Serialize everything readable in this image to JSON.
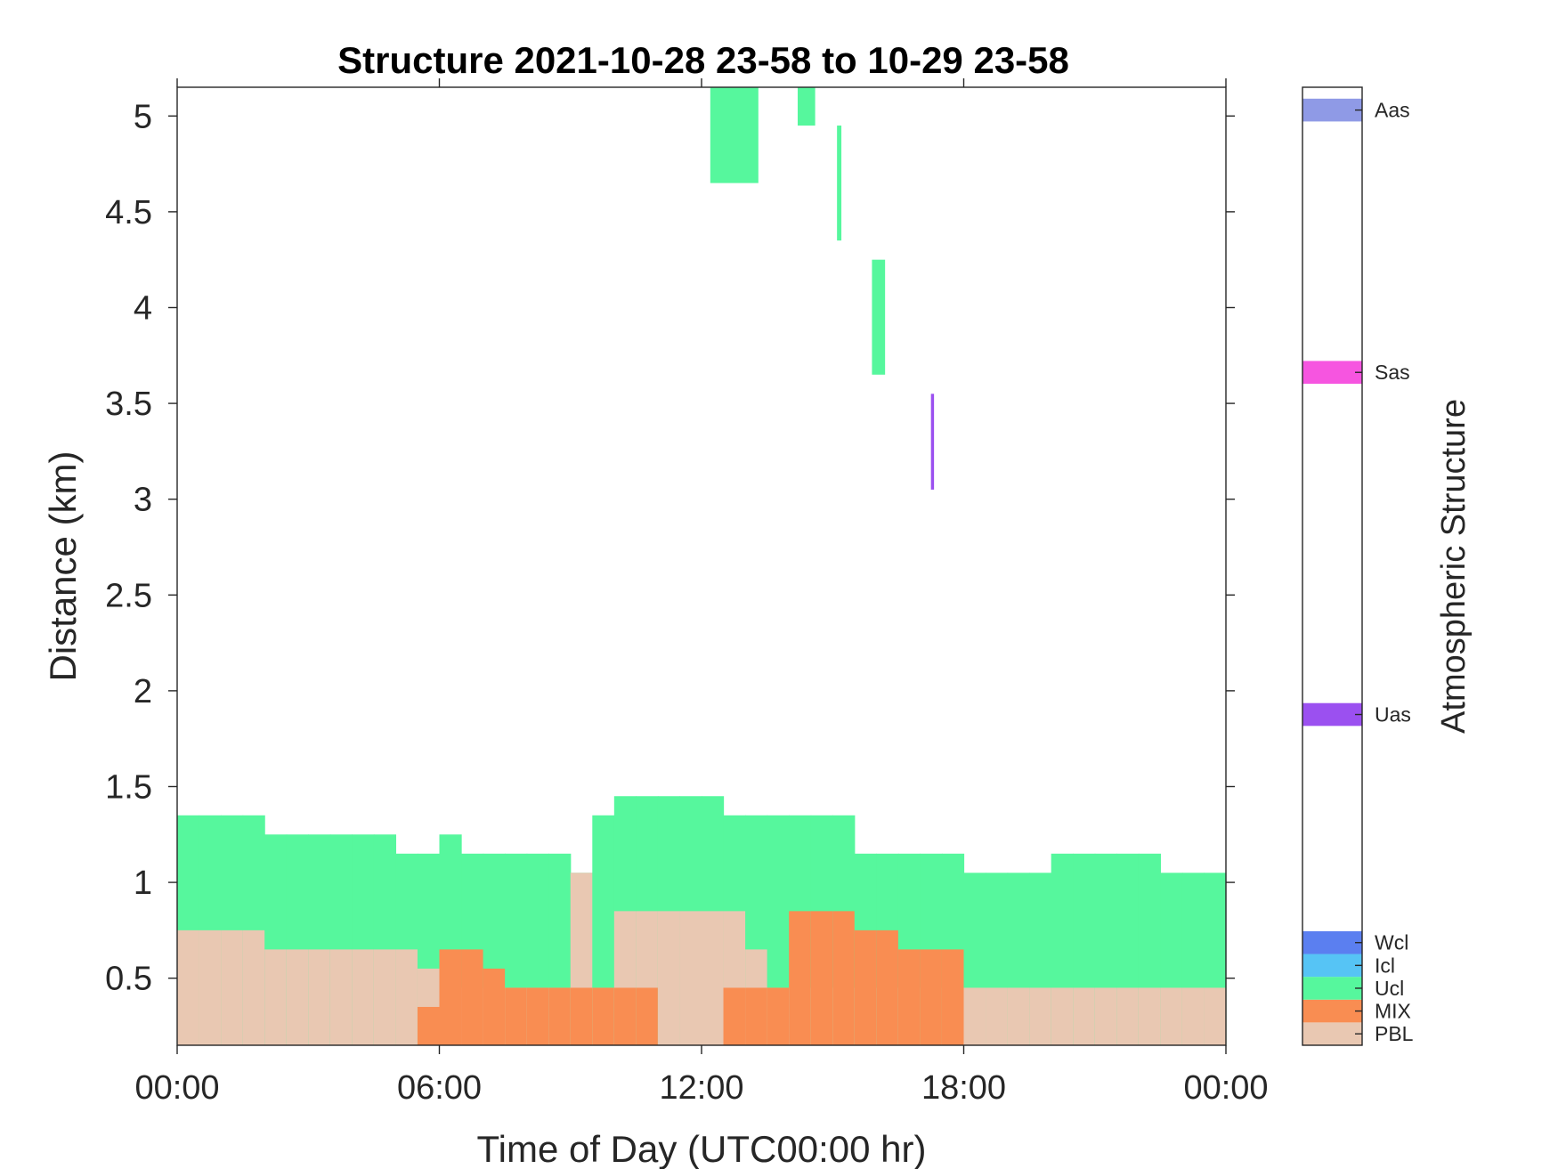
{
  "chart_data": {
    "type": "heatmap",
    "title": "Structure 2021-10-28 23-58 to 10-29 23-58",
    "xlabel": "Time of Day (UTC00:00 hr)",
    "ylabel": "Distance (km)",
    "xlim": [
      0,
      24
    ],
    "ylim": [
      0.15,
      5.15
    ],
    "x_ticks": [
      0,
      6,
      12,
      18,
      24
    ],
    "x_tick_labels": [
      "00:00",
      "06:00",
      "12:00",
      "18:00",
      "00:00"
    ],
    "y_ticks": [
      0.5,
      1,
      1.5,
      2,
      2.5,
      3,
      3.5,
      4,
      4.5,
      5
    ],
    "y_tick_labels": [
      "0.5",
      "1",
      "1.5",
      "2",
      "2.5",
      "3",
      "3.5",
      "4",
      "4.5",
      "5"
    ],
    "grid": false,
    "colorbar": {
      "label": "Atmospheric Structure",
      "categories": [
        {
          "name": "PBL",
          "color": "#e9c8b2"
        },
        {
          "name": "MIX",
          "color": "#f98d52"
        },
        {
          "name": "Ucl",
          "color": "#56f79d"
        },
        {
          "name": "Icl",
          "color": "#56c4f5"
        },
        {
          "name": "Wcl",
          "color": "#5b7ff0"
        },
        {
          "name": "Uas",
          "color": "#9b50f0"
        },
        {
          "name": "Sas",
          "color": "#f655e0"
        },
        {
          "name": "Aas",
          "color": "#8f9ae6"
        }
      ]
    },
    "profiles": {
      "hour_bins": [
        0,
        0.5,
        1,
        1.5,
        2,
        2.5,
        3,
        3.5,
        4,
        4.5,
        5,
        5.5,
        6,
        6.5,
        7,
        7.5,
        8,
        8.5,
        9,
        9.5,
        10,
        10.5,
        11,
        11.5,
        12,
        12.5,
        13,
        13.5,
        14,
        14.5,
        15,
        15.5,
        16,
        16.5,
        17,
        17.5,
        18,
        18.5,
        19,
        19.5,
        20,
        20.5,
        21,
        21.5,
        22,
        22.5,
        23,
        23.5
      ],
      "pbl_top_km": [
        0.75,
        0.75,
        0.75,
        0.75,
        0.65,
        0.65,
        0.65,
        0.65,
        0.65,
        0.65,
        0.65,
        0.55,
        0.45,
        0.45,
        0.45,
        0.45,
        0.45,
        0.45,
        1.05,
        0.45,
        0.85,
        0.85,
        0.85,
        0.85,
        0.85,
        0.85,
        0.65,
        0.45,
        0.45,
        0.45,
        0.45,
        0.45,
        0.45,
        0.45,
        0.45,
        0.45,
        0.45,
        0.45,
        0.45,
        0.45,
        0.45,
        0.45,
        0.45,
        0.45,
        0.45,
        0.45,
        0.45,
        0.45
      ],
      "mix_top_km": [
        0,
        0,
        0,
        0,
        0,
        0,
        0,
        0,
        0,
        0,
        0,
        0.35,
        0.65,
        0.65,
        0.55,
        0.45,
        0.45,
        0.45,
        0.45,
        0.45,
        0.45,
        0.45,
        0,
        0,
        0,
        0.45,
        0.45,
        0.45,
        0.85,
        0.85,
        0.85,
        0.75,
        0.75,
        0.65,
        0.65,
        0.65,
        0,
        0,
        0,
        0,
        0,
        0,
        0,
        0,
        0,
        0,
        0,
        0
      ],
      "ucl_top_km": [
        1.35,
        1.35,
        1.35,
        1.35,
        1.25,
        1.25,
        1.25,
        1.25,
        1.25,
        1.25,
        1.15,
        1.15,
        1.25,
        1.15,
        1.15,
        1.15,
        1.15,
        1.15,
        1.05,
        1.35,
        1.45,
        1.45,
        1.45,
        1.45,
        1.45,
        1.35,
        1.35,
        1.35,
        1.35,
        1.35,
        1.35,
        1.15,
        1.15,
        1.15,
        1.15,
        1.15,
        1.05,
        1.05,
        1.05,
        1.05,
        1.15,
        1.15,
        1.15,
        1.15,
        1.15,
        1.05,
        1.05,
        1.05
      ]
    },
    "upper_layers": [
      {
        "type": "Ucl",
        "t_start": 12.2,
        "t_end": 13.3,
        "z_bottom_km": 4.65,
        "z_top_km": 5.15
      },
      {
        "type": "Ucl",
        "t_start": 14.2,
        "t_end": 14.6,
        "z_bottom_km": 4.95,
        "z_top_km": 5.15
      },
      {
        "type": "Ucl",
        "t_start": 15.1,
        "t_end": 15.2,
        "z_bottom_km": 4.35,
        "z_top_km": 4.95
      },
      {
        "type": "Ucl",
        "t_start": 15.9,
        "t_end": 16.2,
        "z_bottom_km": 3.65,
        "z_top_km": 4.25
      },
      {
        "type": "Uas",
        "t_start": 17.25,
        "t_end": 17.32,
        "z_bottom_km": 3.05,
        "z_top_km": 3.55
      }
    ]
  }
}
